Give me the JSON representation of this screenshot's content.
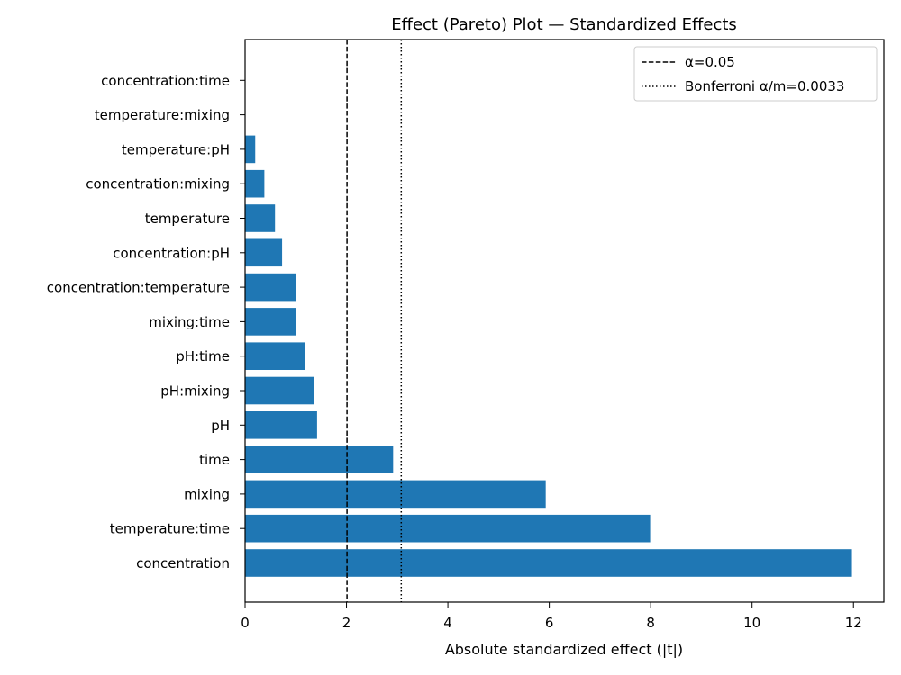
{
  "chart_data": {
    "type": "bar",
    "orientation": "horizontal",
    "title": "Effect (Pareto) Plot — Standardized Effects",
    "xlabel": "Absolute standardized effect (|t|)",
    "ylabel": "",
    "categories": [
      "concentration",
      "temperature:time",
      "mixing",
      "time",
      "pH",
      "pH:mixing",
      "pH:time",
      "mixing:time",
      "concentration:temperature",
      "concentration:pH",
      "temperature",
      "concentration:mixing",
      "temperature:pH",
      "temperature:mixing",
      "concentration:time"
    ],
    "values": [
      11.97,
      7.99,
      5.93,
      2.92,
      1.42,
      1.36,
      1.19,
      1.01,
      1.01,
      0.73,
      0.59,
      0.38,
      0.2,
      0.0,
      0.0
    ],
    "xlim": [
      0,
      12.6
    ],
    "xticks": [
      0,
      2,
      4,
      6,
      8,
      10,
      12
    ],
    "bar_color": "#1f77b4",
    "grid": false,
    "legend_position": "top-right",
    "reference_lines": [
      {
        "label": "α=0.05",
        "x": 2.01,
        "style": "dashed"
      },
      {
        "label": "Bonferroni α/m=0.0033",
        "x": 3.08,
        "style": "dotted"
      }
    ]
  }
}
